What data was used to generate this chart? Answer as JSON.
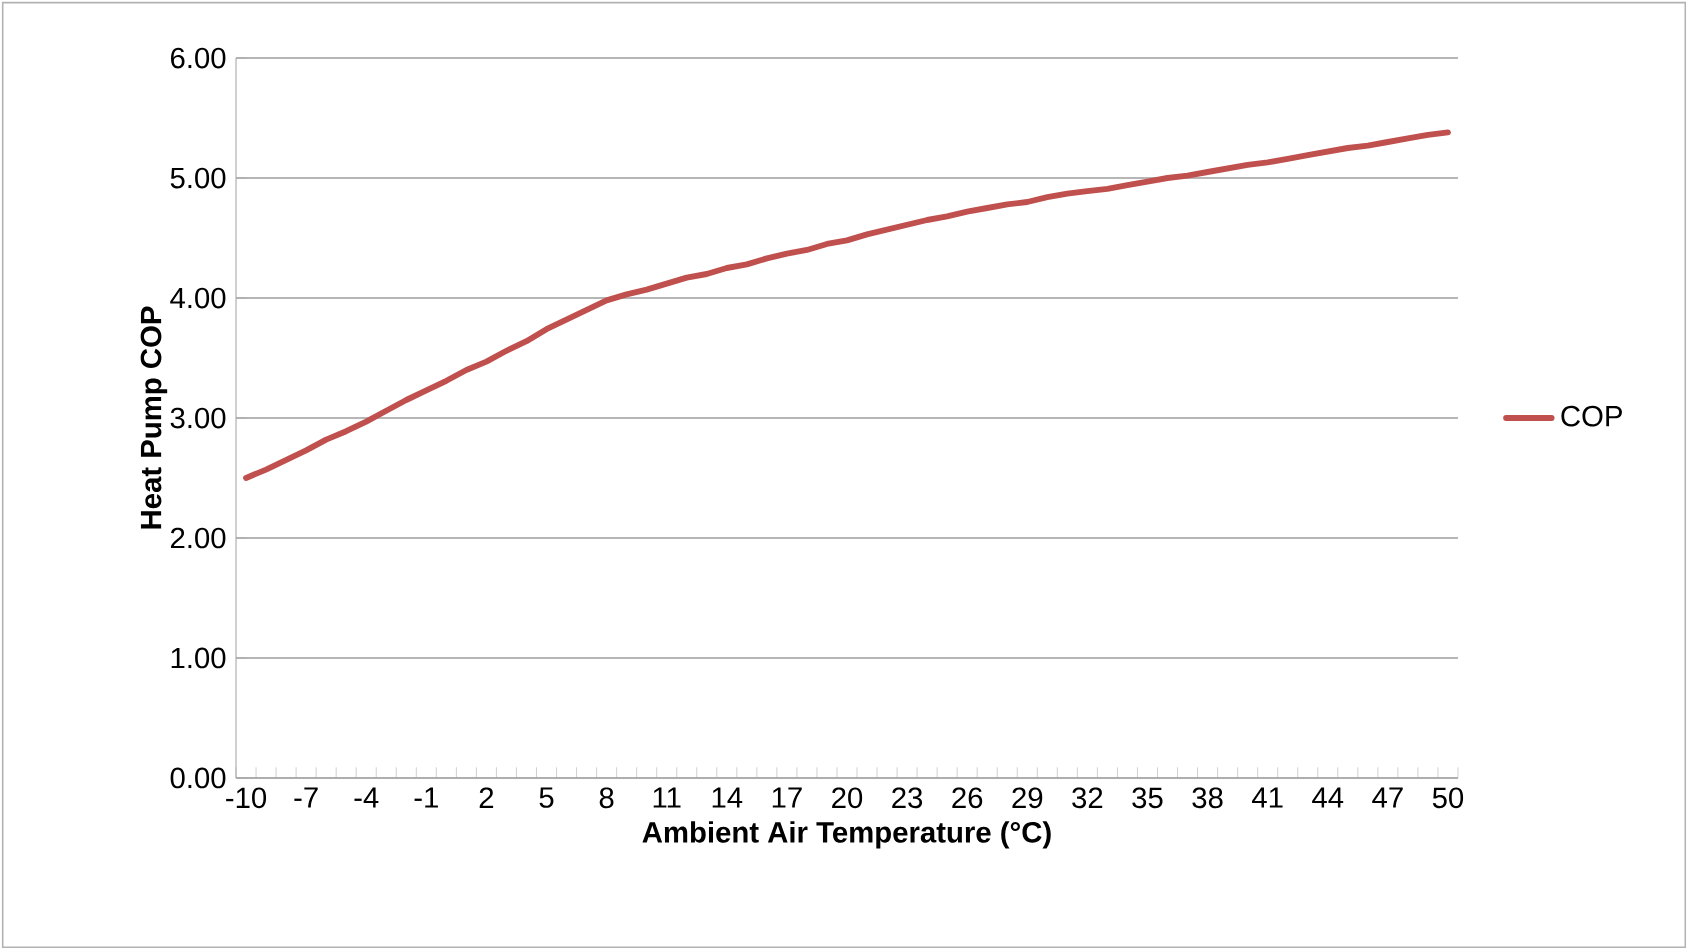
{
  "chart_data": {
    "type": "line",
    "xlabel": "Ambient Air Temperature (°C)",
    "ylabel": "Heat Pump COP",
    "categories": [
      "-10",
      null,
      null,
      "-7",
      null,
      null,
      "-4",
      null,
      null,
      "-1",
      null,
      null,
      "2",
      null,
      null,
      "5",
      null,
      null,
      "8",
      null,
      null,
      "11",
      null,
      null,
      "14",
      null,
      null,
      "17",
      null,
      null,
      "20",
      null,
      null,
      "23",
      null,
      null,
      "26",
      null,
      null,
      "29",
      null,
      null,
      "32",
      null,
      null,
      "35",
      null,
      null,
      "38",
      null,
      null,
      "41",
      null,
      null,
      "44",
      null,
      null,
      "47",
      null,
      null,
      "50"
    ],
    "series": [
      {
        "name": "COP",
        "color": "#c0504d",
        "values": [
          2.5,
          2.57,
          2.65,
          2.73,
          2.82,
          2.89,
          2.97,
          3.06,
          3.15,
          3.23,
          3.31,
          3.4,
          3.47,
          3.56,
          3.64,
          3.74,
          3.82,
          3.9,
          3.98,
          4.03,
          4.07,
          4.12,
          4.17,
          4.2,
          4.25,
          4.28,
          4.33,
          4.37,
          4.4,
          4.45,
          4.48,
          4.53,
          4.57,
          4.61,
          4.65,
          4.68,
          4.72,
          4.75,
          4.78,
          4.8,
          4.84,
          4.87,
          4.89,
          4.91,
          4.94,
          4.97,
          5.0,
          5.02,
          5.05,
          5.08,
          5.11,
          5.13,
          5.16,
          5.19,
          5.22,
          5.25,
          5.27,
          5.3,
          5.33,
          5.36,
          5.38
        ]
      }
    ],
    "ylim": [
      0,
      6
    ],
    "yticks": [
      {
        "value": 0,
        "label": "0.00"
      },
      {
        "value": 1,
        "label": "1.00"
      },
      {
        "value": 2,
        "label": "2.00"
      },
      {
        "value": 3,
        "label": "3.00"
      },
      {
        "value": 4,
        "label": "4.00"
      },
      {
        "value": 5,
        "label": "5.00"
      },
      {
        "value": 6,
        "label": "6.00"
      }
    ],
    "grid": "y",
    "legend": "right",
    "marker": "none",
    "line_style": "solid"
  }
}
